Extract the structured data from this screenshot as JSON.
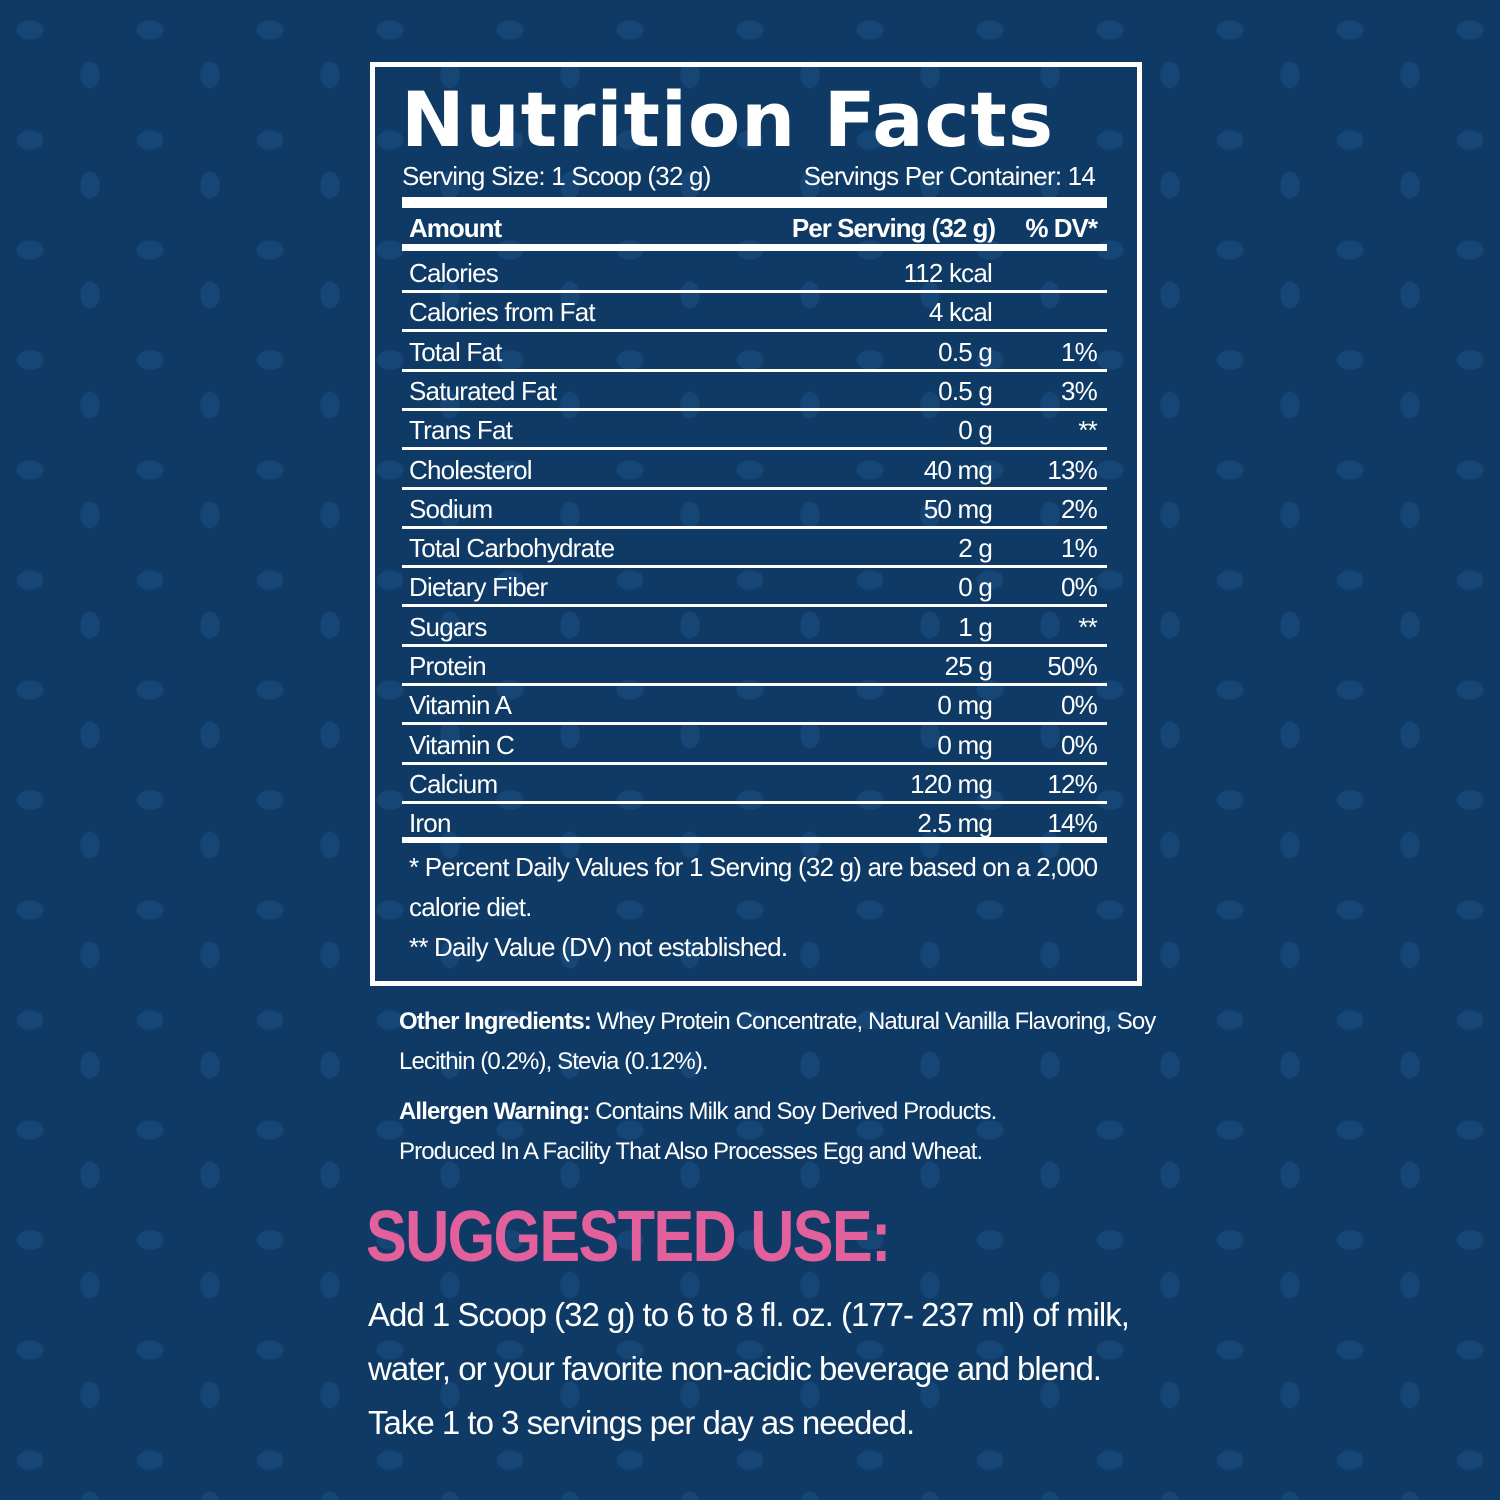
{
  "colors": {
    "background": "#0f3a66",
    "text": "#ffffff",
    "accent": "#e2609b"
  },
  "label": {
    "title": "Nutrition Facts",
    "serving_size": "Serving Size: 1 Scoop (32 g)",
    "servings_per_container": "Servings Per Container: 14",
    "headers": {
      "amount": "Amount",
      "per_serving": "Per Serving (32 g)",
      "dv": "% DV*"
    },
    "rows": [
      {
        "name": "Calories",
        "amount": "112 kcal",
        "dv": ""
      },
      {
        "name": "Calories from Fat",
        "amount": "4 kcal",
        "dv": ""
      },
      {
        "name": "Total Fat",
        "amount": "0.5 g",
        "dv": "1%"
      },
      {
        "name": "Saturated Fat",
        "amount": "0.5 g",
        "dv": "3%"
      },
      {
        "name": "Trans Fat",
        "amount": "0 g",
        "dv": "**"
      },
      {
        "name": "Cholesterol",
        "amount": "40 mg",
        "dv": "13%"
      },
      {
        "name": "Sodium",
        "amount": "50 mg",
        "dv": "2%"
      },
      {
        "name": "Total Carbohydrate",
        "amount": "2 g",
        "dv": "1%"
      },
      {
        "name": "Dietary Fiber",
        "amount": "0 g",
        "dv": "0%"
      },
      {
        "name": "Sugars",
        "amount": "1 g",
        "dv": "**"
      },
      {
        "name": "Protein",
        "amount": "25 g",
        "dv": "50%"
      },
      {
        "name": "Vitamin A",
        "amount": "0 mg",
        "dv": "0%"
      },
      {
        "name": "Vitamin C",
        "amount": "0 mg",
        "dv": "0%"
      },
      {
        "name": "Calcium",
        "amount": "120 mg",
        "dv": "12%"
      },
      {
        "name": "Iron",
        "amount": "2.5 mg",
        "dv": "14%"
      }
    ],
    "footnote1": "* Percent Daily Values for 1 Serving (32 g) are based on a 2,000 calorie diet.",
    "footnote2": "** Daily Value (DV) not established."
  },
  "ingredients": {
    "label": "Other Ingredients:",
    "text": " Whey Protein Concentrate, Natural Vanilla Flavoring, Soy Lecithin (0.2%), Stevia (0.12%)."
  },
  "allergen": {
    "label": "Allergen Warning:",
    "text": " Contains Milk and Soy Derived Products. Produced In A Facility That Also Processes Egg and Wheat."
  },
  "suggested_use": {
    "heading": "SUGGESTED USE:",
    "text": "Add 1 Scoop (32 g) to 6 to 8 fl. oz. (177- 237 ml) of milk, water, or your favorite non-acidic beverage and blend. Take 1 to 3 servings per day as needed."
  }
}
